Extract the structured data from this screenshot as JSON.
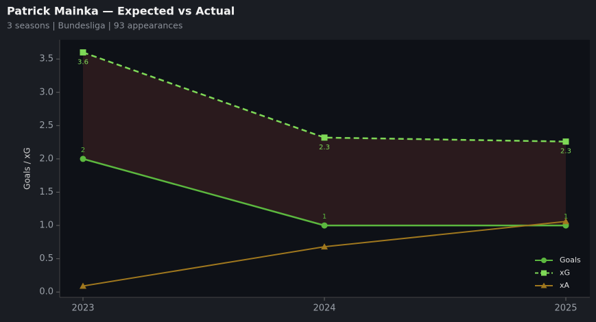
{
  "chart_data": {
    "type": "line",
    "title": "Patrick Mainka — Expected vs Actual",
    "subtitle": "3 seasons | Bundesliga | 93 appearances",
    "y_label": "Goals / xG",
    "categories": [
      "2023",
      "2024",
      "2025"
    ],
    "series": [
      {
        "name": "Goals",
        "color": "#5cb83f",
        "marker": "circle",
        "dashed": false,
        "labels": true,
        "values": [
          2,
          1,
          1
        ]
      },
      {
        "name": "xG",
        "color": "#7ed957",
        "marker": "square",
        "dashed": true,
        "labels": true,
        "values": [
          3.6,
          2.32,
          2.26
        ],
        "value_labels": [
          "3.6",
          "2.3",
          "2.3"
        ]
      },
      {
        "name": "xA",
        "color": "#a0781e",
        "marker": "triangle",
        "dashed": false,
        "labels": false,
        "values": [
          0.09,
          0.68,
          1.06
        ]
      }
    ],
    "area_fill": "#2e1c1e",
    "ylim": [
      -0.08,
      3.79
    ],
    "yticks": [
      {
        "value": 0,
        "label": "0.0"
      },
      0.5,
      {
        "value": 1,
        "label": "1.0"
      },
      1.5,
      {
        "value": 2,
        "label": "2.0"
      },
      2.5,
      {
        "value": 3,
        "label": "3.0"
      },
      3.5
    ],
    "legend": "lower right"
  }
}
